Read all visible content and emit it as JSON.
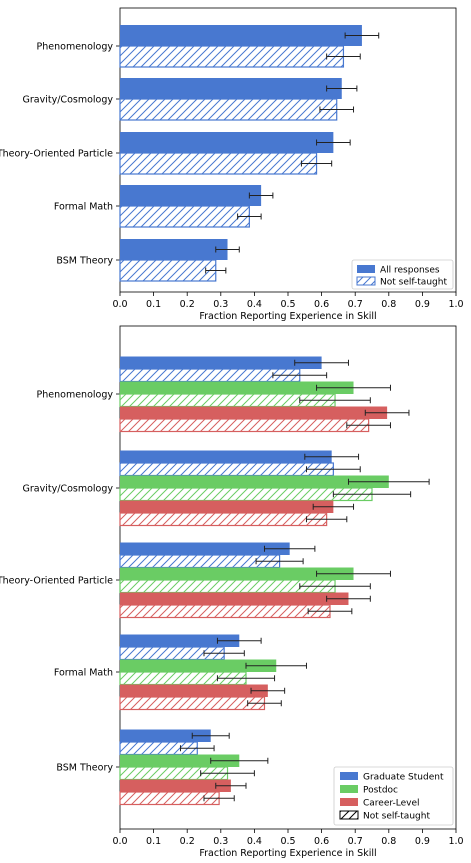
{
  "chart_data": [
    {
      "type": "bar",
      "orientation": "horizontal",
      "categories": [
        "Phenomenology",
        "Gravity/Cosmology",
        "Theory-Oriented Particle",
        "Formal Math",
        "BSM Theory"
      ],
      "xlabel": "Fraction Reporting Experience in Skill",
      "xlim": [
        0.0,
        1.0
      ],
      "xticks": [
        "0.0",
        "0.1",
        "0.2",
        "0.3",
        "0.4",
        "0.5",
        "0.6",
        "0.7",
        "0.8",
        "0.9",
        "1.0"
      ],
      "legend_position": "lower-right",
      "series": [
        {
          "name": "All responses",
          "style": "solid",
          "color": "#4878d0",
          "values": [
            0.72,
            0.66,
            0.635,
            0.42,
            0.32
          ],
          "errors": [
            0.05,
            0.045,
            0.05,
            0.035,
            0.035
          ]
        },
        {
          "name": "Not self-taught",
          "style": "hatched",
          "color": "#4878d0",
          "values": [
            0.665,
            0.645,
            0.585,
            0.385,
            0.285
          ],
          "errors": [
            0.05,
            0.05,
            0.045,
            0.035,
            0.03
          ]
        }
      ]
    },
    {
      "type": "bar",
      "orientation": "horizontal",
      "categories": [
        "Phenomenology",
        "Gravity/Cosmology",
        "Theory-Oriented Particle",
        "Formal Math",
        "BSM Theory"
      ],
      "xlabel": "Fraction Reporting Experience in Skill",
      "xlim": [
        0.0,
        1.0
      ],
      "xticks": [
        "0.0",
        "0.1",
        "0.2",
        "0.3",
        "0.4",
        "0.5",
        "0.6",
        "0.7",
        "0.8",
        "0.9",
        "1.0"
      ],
      "legend_position": "lower-right",
      "legend": [
        "Graduate Student",
        "Postdoc",
        "Career-Level",
        "Not self-taught"
      ],
      "series": [
        {
          "group": "Graduate Student",
          "style": "solid",
          "color": "#4878d0",
          "values": [
            0.6,
            0.63,
            0.505,
            0.355,
            0.27
          ],
          "errors": [
            0.08,
            0.08,
            0.075,
            0.065,
            0.055
          ]
        },
        {
          "group": "Graduate Student",
          "style": "hatched",
          "color": "#4878d0",
          "values": [
            0.535,
            0.635,
            0.475,
            0.31,
            0.23
          ],
          "errors": [
            0.08,
            0.08,
            0.07,
            0.06,
            0.05
          ]
        },
        {
          "group": "Postdoc",
          "style": "solid",
          "color": "#6acc64",
          "values": [
            0.695,
            0.8,
            0.695,
            0.465,
            0.355
          ],
          "errors": [
            0.11,
            0.12,
            0.11,
            0.09,
            0.085
          ]
        },
        {
          "group": "Postdoc",
          "style": "hatched",
          "color": "#6acc64",
          "values": [
            0.64,
            0.75,
            0.64,
            0.375,
            0.32
          ],
          "errors": [
            0.105,
            0.115,
            0.105,
            0.085,
            0.08
          ]
        },
        {
          "group": "Career-Level",
          "style": "solid",
          "color": "#d65f5f",
          "values": [
            0.795,
            0.635,
            0.68,
            0.44,
            0.33
          ],
          "errors": [
            0.065,
            0.06,
            0.065,
            0.05,
            0.045
          ]
        },
        {
          "group": "Career-Level",
          "style": "hatched",
          "color": "#d65f5f",
          "values": [
            0.74,
            0.615,
            0.625,
            0.43,
            0.295
          ],
          "errors": [
            0.065,
            0.06,
            0.065,
            0.05,
            0.045
          ]
        }
      ]
    }
  ]
}
